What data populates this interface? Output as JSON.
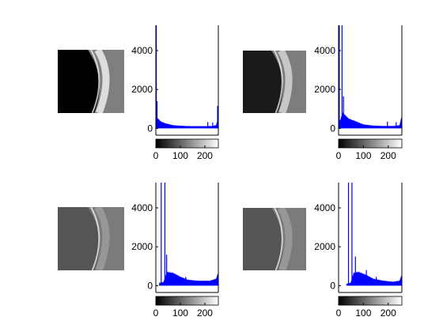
{
  "chart_data": [
    {
      "type": "bar",
      "image_shade": "bright",
      "title": "",
      "xlabel": "",
      "ylabel": "",
      "xlim": [
        0,
        255
      ],
      "ylim": [
        -350,
        5300
      ],
      "xticks": [
        "0",
        "100",
        "200"
      ],
      "yticks": [
        "0",
        "2000",
        "4000"
      ],
      "bar_color": "#0000ff",
      "spikes": [
        {
          "x": 0,
          "y": 5300
        },
        {
          "x": 3,
          "y": 1400
        },
        {
          "x": 250,
          "y": 1150
        },
        {
          "x": 210,
          "y": 320
        },
        {
          "x": 230,
          "y": 300
        }
      ],
      "profile": [
        [
          0,
          700
        ],
        [
          8,
          500
        ],
        [
          20,
          350
        ],
        [
          40,
          250
        ],
        [
          70,
          160
        ],
        [
          120,
          120
        ],
        [
          160,
          110
        ],
        [
          200,
          110
        ],
        [
          230,
          120
        ],
        [
          245,
          160
        ],
        [
          255,
          600
        ]
      ]
    },
    {
      "type": "bar",
      "image_shade": "medium",
      "title": "",
      "xlabel": "",
      "ylabel": "",
      "xlim": [
        0,
        255
      ],
      "ylim": [
        -350,
        5300
      ],
      "xticks": [
        "0",
        "100",
        "200"
      ],
      "yticks": [
        "0",
        "2000",
        "4000"
      ],
      "bar_color": "#0000ff",
      "spikes": [
        {
          "x": 1,
          "y": 5300
        },
        {
          "x": 12,
          "y": 5300
        },
        {
          "x": 18,
          "y": 1650
        },
        {
          "x": 255,
          "y": 1350
        },
        {
          "x": 195,
          "y": 350
        },
        {
          "x": 230,
          "y": 320
        }
      ],
      "profile": [
        [
          0,
          200
        ],
        [
          16,
          800
        ],
        [
          24,
          700
        ],
        [
          40,
          500
        ],
        [
          70,
          350
        ],
        [
          100,
          200
        ],
        [
          140,
          140
        ],
        [
          180,
          120
        ],
        [
          220,
          120
        ],
        [
          245,
          160
        ],
        [
          255,
          700
        ]
      ]
    },
    {
      "type": "bar",
      "image_shade": "gray",
      "title": "",
      "xlabel": "",
      "ylabel": "",
      "xlim": [
        0,
        255
      ],
      "ylim": [
        -350,
        5300
      ],
      "xticks": [
        "0",
        "100",
        "200"
      ],
      "yticks": [
        "0",
        "2000",
        "4000"
      ],
      "bar_color": "#0000ff",
      "spikes": [
        {
          "x": 20,
          "y": 5300
        },
        {
          "x": 35,
          "y": 5300
        },
        {
          "x": 42,
          "y": 1600
        },
        {
          "x": 255,
          "y": 1550
        },
        {
          "x": 120,
          "y": 450
        }
      ],
      "profile": [
        [
          0,
          0
        ],
        [
          12,
          0
        ],
        [
          14,
          150
        ],
        [
          30,
          180
        ],
        [
          45,
          700
        ],
        [
          70,
          650
        ],
        [
          100,
          450
        ],
        [
          130,
          300
        ],
        [
          170,
          250
        ],
        [
          220,
          250
        ],
        [
          245,
          350
        ],
        [
          255,
          700
        ]
      ]
    },
    {
      "type": "bar",
      "image_shade": "gray",
      "title": "",
      "xlabel": "",
      "ylabel": "",
      "xlim": [
        0,
        255
      ],
      "ylim": [
        -350,
        5300
      ],
      "xticks": [
        "0",
        "100",
        "200"
      ],
      "yticks": [
        "0",
        "2000",
        "4000"
      ],
      "bar_color": "#0000ff",
      "spikes": [
        {
          "x": 38,
          "y": 5300
        },
        {
          "x": 52,
          "y": 5300
        },
        {
          "x": 66,
          "y": 1500
        },
        {
          "x": 255,
          "y": 1550
        },
        {
          "x": 110,
          "y": 800
        },
        {
          "x": 150,
          "y": 450
        }
      ],
      "profile": [
        [
          0,
          0
        ],
        [
          30,
          0
        ],
        [
          32,
          100
        ],
        [
          48,
          150
        ],
        [
          60,
          650
        ],
        [
          80,
          700
        ],
        [
          110,
          550
        ],
        [
          140,
          350
        ],
        [
          180,
          250
        ],
        [
          220,
          200
        ],
        [
          245,
          250
        ],
        [
          255,
          600
        ]
      ]
    }
  ]
}
